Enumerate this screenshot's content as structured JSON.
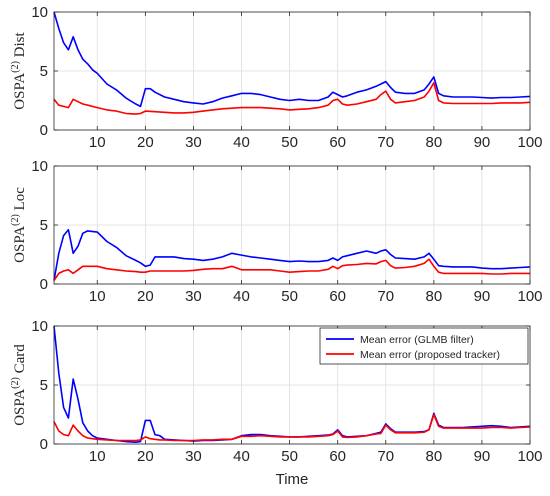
{
  "chart_data": [
    {
      "type": "line",
      "ylabel_main": "OSPA",
      "ylabel_sup": "(2)",
      "ylabel_suffix": "Dist",
      "xlim": [
        1,
        100
      ],
      "ylim": [
        0,
        10
      ],
      "xticks": [
        "10",
        "20",
        "30",
        "40",
        "50",
        "60",
        "70",
        "80",
        "90",
        "100"
      ],
      "yticks": [
        "0",
        "5",
        "10"
      ],
      "grid": true,
      "series": [
        {
          "color": "#0000ff",
          "x": [
            1,
            2,
            3,
            4,
            5,
            6,
            7,
            8,
            9,
            10,
            12,
            14,
            16,
            18,
            19,
            20,
            21,
            22,
            24,
            26,
            28,
            30,
            32,
            34,
            36,
            38,
            40,
            42,
            44,
            46,
            48,
            50,
            52,
            54,
            56,
            58,
            59,
            60,
            61,
            62,
            64,
            66,
            68,
            69,
            70,
            71,
            72,
            74,
            76,
            78,
            79,
            80,
            81,
            82,
            84,
            86,
            88,
            90,
            92,
            94,
            96,
            98,
            100
          ],
          "y": [
            10,
            8.6,
            7.4,
            6.8,
            7.9,
            6.8,
            6,
            5.6,
            5.1,
            4.8,
            3.9,
            3.4,
            2.7,
            2.2,
            2,
            3.5,
            3.5,
            3.2,
            2.8,
            2.6,
            2.4,
            2.3,
            2.2,
            2.4,
            2.7,
            2.9,
            3.1,
            3.1,
            3,
            2.8,
            2.6,
            2.5,
            2.6,
            2.5,
            2.5,
            2.8,
            3.2,
            3,
            2.8,
            2.9,
            3.2,
            3.4,
            3.7,
            3.9,
            4.1,
            3.6,
            3.2,
            3.1,
            3.1,
            3.4,
            3.9,
            4.5,
            3.1,
            2.9,
            2.8,
            2.8,
            2.8,
            2.75,
            2.7,
            2.75,
            2.75,
            2.8,
            2.85
          ]
        },
        {
          "color": "#ff0000",
          "x": [
            1,
            2,
            3,
            4,
            5,
            6,
            7,
            8,
            10,
            12,
            14,
            16,
            18,
            19,
            20,
            22,
            24,
            26,
            28,
            30,
            32,
            34,
            36,
            38,
            40,
            42,
            44,
            46,
            48,
            50,
            52,
            54,
            56,
            58,
            59,
            60,
            61,
            62,
            64,
            66,
            68,
            69,
            70,
            71,
            72,
            74,
            76,
            78,
            79,
            80,
            81,
            82,
            84,
            86,
            88,
            90,
            92,
            94,
            96,
            98,
            100
          ],
          "y": [
            2.6,
            2.1,
            2,
            1.9,
            2.6,
            2.4,
            2.2,
            2.1,
            1.9,
            1.7,
            1.6,
            1.4,
            1.35,
            1.4,
            1.6,
            1.55,
            1.5,
            1.45,
            1.45,
            1.5,
            1.6,
            1.7,
            1.8,
            1.85,
            1.9,
            1.9,
            1.9,
            1.85,
            1.8,
            1.7,
            1.75,
            1.8,
            1.9,
            2.1,
            2.5,
            2.6,
            2.2,
            2.1,
            2.2,
            2.4,
            2.6,
            3,
            3.3,
            2.6,
            2.3,
            2.4,
            2.5,
            2.8,
            3.3,
            4,
            2.5,
            2.3,
            2.25,
            2.25,
            2.25,
            2.25,
            2.25,
            2.3,
            2.3,
            2.3,
            2.35
          ]
        }
      ]
    },
    {
      "type": "line",
      "ylabel_main": "OSPA",
      "ylabel_sup": "(2)",
      "ylabel_suffix": "Loc",
      "xlim": [
        1,
        100
      ],
      "ylim": [
        0,
        10
      ],
      "xticks": [
        "10",
        "20",
        "30",
        "40",
        "50",
        "60",
        "70",
        "80",
        "90",
        "100"
      ],
      "yticks": [
        "0",
        "5",
        "10"
      ],
      "grid": true,
      "series": [
        {
          "color": "#0000ff",
          "x": [
            1,
            2,
            3,
            4,
            5,
            6,
            7,
            8,
            10,
            12,
            14,
            16,
            18,
            19,
            20,
            21,
            22,
            24,
            26,
            28,
            30,
            32,
            34,
            36,
            38,
            40,
            42,
            44,
            46,
            48,
            50,
            52,
            54,
            56,
            58,
            59,
            60,
            61,
            62,
            64,
            66,
            68,
            69,
            70,
            71,
            72,
            74,
            76,
            78,
            79,
            80,
            81,
            82,
            84,
            86,
            88,
            90,
            92,
            94,
            96,
            98,
            100
          ],
          "y": [
            0.3,
            2.6,
            4.1,
            4.6,
            2.6,
            3.2,
            4.3,
            4.5,
            4.4,
            3.6,
            3.1,
            2.4,
            2,
            1.8,
            1.5,
            1.6,
            2.3,
            2.3,
            2.3,
            2.15,
            2.1,
            2,
            2.1,
            2.3,
            2.6,
            2.45,
            2.3,
            2.2,
            2.1,
            2,
            1.9,
            1.95,
            1.9,
            1.9,
            2,
            2.2,
            2,
            2.3,
            2.4,
            2.6,
            2.8,
            2.6,
            2.8,
            2.9,
            2.5,
            2.2,
            2.15,
            2.1,
            2.3,
            2.6,
            2.1,
            1.55,
            1.5,
            1.45,
            1.45,
            1.45,
            1.35,
            1.3,
            1.3,
            1.35,
            1.4,
            1.45
          ]
        },
        {
          "color": "#ff0000",
          "x": [
            1,
            2,
            3,
            4,
            5,
            6,
            7,
            8,
            10,
            12,
            14,
            16,
            18,
            19,
            20,
            21,
            22,
            24,
            26,
            28,
            30,
            32,
            34,
            36,
            38,
            40,
            42,
            44,
            46,
            48,
            50,
            52,
            54,
            56,
            58,
            59,
            60,
            61,
            62,
            64,
            66,
            68,
            69,
            70,
            71,
            72,
            74,
            76,
            78,
            79,
            80,
            81,
            82,
            84,
            86,
            88,
            90,
            92,
            94,
            96,
            98,
            100
          ],
          "y": [
            0.3,
            0.9,
            1.1,
            1.2,
            0.9,
            1.2,
            1.5,
            1.5,
            1.5,
            1.3,
            1.2,
            1.1,
            1.05,
            1,
            1,
            1.1,
            1.1,
            1.1,
            1.1,
            1.1,
            1.15,
            1.25,
            1.3,
            1.3,
            1.5,
            1.2,
            1.2,
            1.2,
            1.2,
            1.1,
            1,
            1.05,
            1.1,
            1.1,
            1.25,
            1.5,
            1.3,
            1.55,
            1.6,
            1.65,
            1.75,
            1.7,
            1.9,
            2,
            1.55,
            1.35,
            1.4,
            1.5,
            1.75,
            2.1,
            1.5,
            1,
            0.9,
            0.9,
            0.9,
            0.9,
            0.9,
            0.85,
            0.85,
            0.9,
            0.9,
            0.9
          ]
        }
      ]
    },
    {
      "type": "line",
      "ylabel_main": "OSPA",
      "ylabel_sup": "(2)",
      "ylabel_suffix": "Card",
      "xlabel": "Time",
      "xlim": [
        1,
        100
      ],
      "ylim": [
        0,
        10
      ],
      "xticks": [
        "10",
        "20",
        "30",
        "40",
        "50",
        "60",
        "70",
        "80",
        "90",
        "100"
      ],
      "yticks": [
        "0",
        "5",
        "10"
      ],
      "grid": true,
      "legend": "top-right",
      "series": [
        {
          "name": "Mean error (GLMB filter)",
          "color": "#0000ff",
          "x": [
            1,
            2,
            3,
            4,
            5,
            6,
            7,
            8,
            9,
            10,
            12,
            14,
            16,
            18,
            19,
            20,
            21,
            22,
            23,
            24,
            26,
            28,
            30,
            32,
            34,
            36,
            38,
            40,
            42,
            44,
            46,
            48,
            50,
            52,
            54,
            56,
            58,
            59,
            60,
            61,
            62,
            64,
            66,
            68,
            69,
            70,
            71,
            72,
            74,
            76,
            78,
            79,
            80,
            81,
            82,
            84,
            86,
            88,
            90,
            92,
            94,
            96,
            98,
            100
          ],
          "y": [
            10,
            6,
            3.1,
            2.2,
            5.5,
            3.8,
            1.8,
            1.1,
            0.7,
            0.5,
            0.4,
            0.3,
            0.2,
            0.15,
            0.2,
            2,
            2,
            0.8,
            0.7,
            0.4,
            0.35,
            0.3,
            0.25,
            0.3,
            0.3,
            0.35,
            0.4,
            0.7,
            0.8,
            0.8,
            0.7,
            0.65,
            0.6,
            0.6,
            0.65,
            0.7,
            0.75,
            0.85,
            1.2,
            0.7,
            0.6,
            0.65,
            0.7,
            0.9,
            1,
            1.7,
            1.3,
            1,
            1,
            1,
            1.05,
            1.2,
            2.6,
            1.6,
            1.4,
            1.4,
            1.4,
            1.45,
            1.5,
            1.55,
            1.5,
            1.4,
            1.45,
            1.5
          ]
        },
        {
          "name": "Mean error (proposed tracker)",
          "color": "#ff0000",
          "x": [
            1,
            2,
            3,
            4,
            5,
            6,
            7,
            8,
            9,
            10,
            12,
            14,
            16,
            18,
            19,
            20,
            21,
            22,
            23,
            24,
            26,
            28,
            30,
            32,
            34,
            36,
            38,
            40,
            42,
            44,
            46,
            48,
            50,
            52,
            54,
            56,
            58,
            59,
            60,
            61,
            62,
            64,
            66,
            68,
            69,
            70,
            71,
            72,
            74,
            76,
            78,
            79,
            80,
            81,
            82,
            84,
            86,
            88,
            90,
            92,
            94,
            96,
            98,
            100
          ],
          "y": [
            1.9,
            1.1,
            0.8,
            0.7,
            1.6,
            1.1,
            0.7,
            0.5,
            0.45,
            0.4,
            0.35,
            0.3,
            0.3,
            0.3,
            0.35,
            0.6,
            0.45,
            0.4,
            0.35,
            0.35,
            0.3,
            0.3,
            0.3,
            0.35,
            0.35,
            0.4,
            0.4,
            0.65,
            0.65,
            0.7,
            0.65,
            0.6,
            0.6,
            0.6,
            0.6,
            0.65,
            0.7,
            0.8,
            1.1,
            0.6,
            0.55,
            0.6,
            0.7,
            0.85,
            0.9,
            1.6,
            1.2,
            0.95,
            0.95,
            0.95,
            1,
            1.2,
            2.5,
            1.5,
            1.35,
            1.35,
            1.35,
            1.35,
            1.35,
            1.4,
            1.4,
            1.35,
            1.4,
            1.45
          ]
        }
      ]
    }
  ]
}
